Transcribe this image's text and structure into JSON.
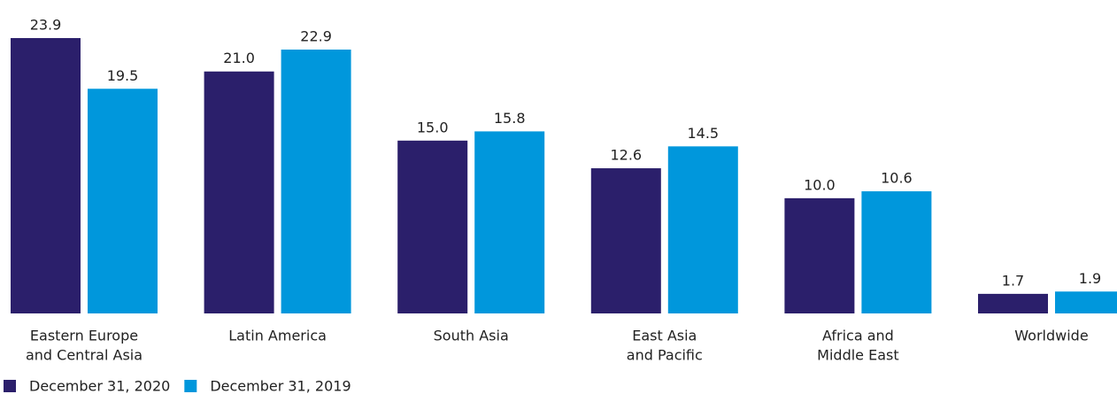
{
  "chart_data": {
    "type": "bar",
    "categories": [
      [
        "Eastern Europe",
        "and Central Asia"
      ],
      [
        "Latin America"
      ],
      [
        "South Asia"
      ],
      [
        "East Asia",
        "and Pacific"
      ],
      [
        "Africa and",
        "Middle East"
      ],
      [
        "Worldwide"
      ]
    ],
    "series": [
      {
        "name": "December 31, 2020",
        "color": "#2b1f6b",
        "values": [
          23.9,
          21.0,
          15.0,
          12.6,
          10.0,
          1.7
        ],
        "value_labels": [
          "23.9",
          "21.0",
          "15.0",
          "12.6",
          "10.0",
          "1.7"
        ]
      },
      {
        "name": "December 31, 2019",
        "color": "#0097dc",
        "values": [
          19.5,
          22.9,
          15.8,
          14.5,
          10.6,
          1.9
        ],
        "value_labels": [
          "19.5",
          "22.9",
          "15.8",
          "14.5",
          "10.6",
          "1.9"
        ]
      }
    ],
    "legend": "bottom-left"
  }
}
